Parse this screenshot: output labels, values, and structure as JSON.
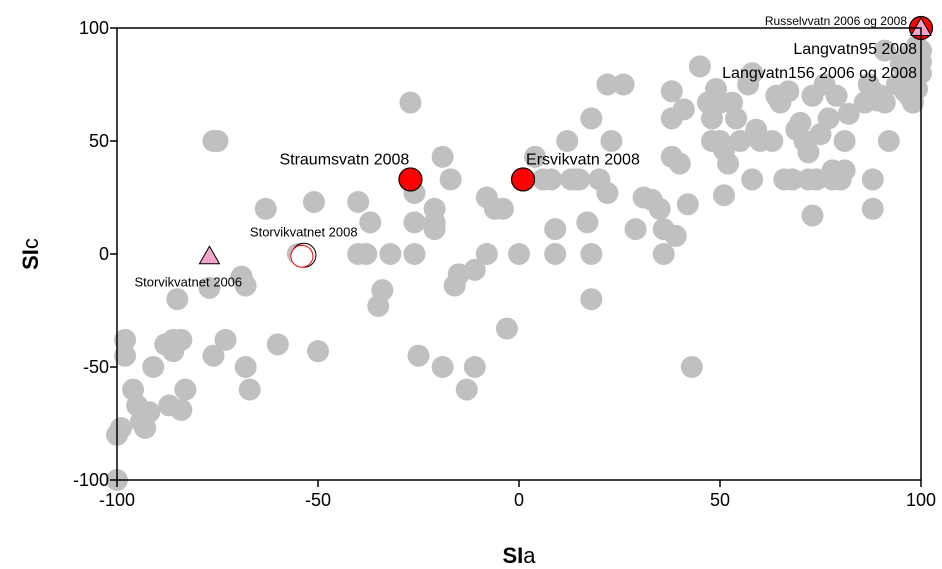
{
  "chart_data": {
    "type": "scatter",
    "xlabel": "SIa",
    "ylabel": "SIc",
    "xlim": [
      -100,
      100
    ],
    "ylim": [
      -100,
      100
    ],
    "xticks": [
      -100,
      -50,
      0,
      50,
      100
    ],
    "yticks": [
      -100,
      -50,
      0,
      50,
      100
    ],
    "grid": false,
    "colors": {
      "background_points": "#c0c0c0",
      "highlight": "#ff0000",
      "triangle": "#f4a6c8"
    },
    "background_points": [
      [
        -100,
        -100
      ],
      [
        -100,
        -80
      ],
      [
        -99,
        -77
      ],
      [
        -98,
        -45
      ],
      [
        -98,
        -38
      ],
      [
        -96,
        -60
      ],
      [
        -95,
        -67
      ],
      [
        -94,
        -74
      ],
      [
        -93,
        -77
      ],
      [
        -92,
        -70
      ],
      [
        -91,
        -50
      ],
      [
        -88,
        -40
      ],
      [
        -86,
        -38
      ],
      [
        -86,
        -43
      ],
      [
        -85,
        -20
      ],
      [
        -84,
        -38
      ],
      [
        -84,
        -69
      ],
      [
        -83,
        -60
      ],
      [
        -87,
        -67
      ],
      [
        -77,
        -15
      ],
      [
        -76,
        -45
      ],
      [
        -76,
        50
      ],
      [
        -75,
        50
      ],
      [
        -73,
        -38
      ],
      [
        -69,
        -10
      ],
      [
        -68,
        -14
      ],
      [
        -68,
        -50
      ],
      [
        -67,
        -60
      ],
      [
        -63,
        20
      ],
      [
        -60,
        -40
      ],
      [
        -55,
        0
      ],
      [
        -51,
        23
      ],
      [
        -50,
        -43
      ],
      [
        -40,
        23
      ],
      [
        -40,
        0
      ],
      [
        -38,
        0
      ],
      [
        -37,
        14
      ],
      [
        -35,
        -23
      ],
      [
        -34,
        -16
      ],
      [
        -32,
        0
      ],
      [
        -27,
        67
      ],
      [
        -26,
        27
      ],
      [
        -26,
        14
      ],
      [
        -26,
        0
      ],
      [
        -25,
        -45
      ],
      [
        -19,
        43
      ],
      [
        -19,
        -50
      ],
      [
        -17,
        33
      ],
      [
        -16,
        -14
      ],
      [
        -15,
        -9
      ],
      [
        -21,
        20
      ],
      [
        -21,
        14
      ],
      [
        -21,
        11
      ],
      [
        -13,
        -60
      ],
      [
        -11,
        -7
      ],
      [
        -11,
        -50
      ],
      [
        -8,
        25
      ],
      [
        -6,
        20
      ],
      [
        -4,
        20
      ],
      [
        -8,
        0
      ],
      [
        -3,
        -33
      ],
      [
        0,
        0
      ],
      [
        4,
        43
      ],
      [
        6,
        33
      ],
      [
        8,
        33
      ],
      [
        9,
        11
      ],
      [
        9,
        0
      ],
      [
        12,
        50
      ],
      [
        13,
        33
      ],
      [
        14,
        33
      ],
      [
        15,
        33
      ],
      [
        17,
        14
      ],
      [
        18,
        60
      ],
      [
        18,
        0
      ],
      [
        18,
        -20
      ],
      [
        20,
        33
      ],
      [
        22,
        75
      ],
      [
        22,
        27
      ],
      [
        23,
        50
      ],
      [
        26,
        75
      ],
      [
        29,
        11
      ],
      [
        31,
        25
      ],
      [
        33,
        24
      ],
      [
        35,
        20
      ],
      [
        36,
        0
      ],
      [
        36,
        11
      ],
      [
        38,
        72
      ],
      [
        38,
        60
      ],
      [
        38,
        43
      ],
      [
        39,
        8
      ],
      [
        40,
        40
      ],
      [
        41,
        64
      ],
      [
        42,
        22
      ],
      [
        43,
        -50
      ],
      [
        45,
        83
      ],
      [
        47,
        67
      ],
      [
        48,
        50
      ],
      [
        48,
        60
      ],
      [
        49,
        73
      ],
      [
        50,
        67
      ],
      [
        50,
        50
      ],
      [
        51,
        46
      ],
      [
        51,
        26
      ],
      [
        52,
        40
      ],
      [
        53,
        67
      ],
      [
        54,
        60
      ],
      [
        55,
        50
      ],
      [
        57,
        75
      ],
      [
        58,
        80
      ],
      [
        58,
        33
      ],
      [
        59,
        55
      ],
      [
        60,
        50
      ],
      [
        63,
        50
      ],
      [
        64,
        70
      ],
      [
        65,
        67
      ],
      [
        66,
        33
      ],
      [
        67,
        72
      ],
      [
        68,
        33
      ],
      [
        69,
        55
      ],
      [
        70,
        58
      ],
      [
        71,
        50
      ],
      [
        72,
        45
      ],
      [
        72,
        33
      ],
      [
        73,
        70
      ],
      [
        74,
        33
      ],
      [
        73,
        17
      ],
      [
        75,
        53
      ],
      [
        76,
        75
      ],
      [
        77,
        60
      ],
      [
        78,
        37
      ],
      [
        78,
        33
      ],
      [
        79,
        70
      ],
      [
        80,
        33
      ],
      [
        81,
        50
      ],
      [
        81,
        37
      ],
      [
        82,
        62
      ],
      [
        86,
        67
      ],
      [
        87,
        75
      ],
      [
        88,
        72
      ],
      [
        88,
        33
      ],
      [
        88,
        20
      ],
      [
        89,
        68
      ],
      [
        90,
        70
      ],
      [
        91,
        90
      ],
      [
        91,
        67
      ],
      [
        92,
        50
      ],
      [
        94,
        75
      ],
      [
        95,
        84
      ],
      [
        96,
        72
      ],
      [
        97,
        70
      ],
      [
        98,
        80
      ],
      [
        98,
        67
      ],
      [
        99,
        73
      ],
      [
        100,
        90
      ],
      [
        100,
        80
      ],
      [
        100,
        85
      ],
      [
        99,
        92
      ],
      [
        97,
        88
      ]
    ],
    "highlighted_points": [
      {
        "label": "Straumsvatn 2008",
        "x": -27,
        "y": 33,
        "marker": "filled-circle"
      },
      {
        "label": "Ersvikvatn 2008",
        "x": 1,
        "y": 33,
        "marker": "filled-circle"
      },
      {
        "label": "Storvikvatnet 2008",
        "x": -54,
        "y": -1,
        "marker": "open-circle"
      },
      {
        "label": "Storvikvatnet 2006",
        "x": -77,
        "y": -1,
        "marker": "triangle"
      },
      {
        "label": "Russelvvatn 2006 og 2008",
        "x": 100,
        "y": 100,
        "marker": "filled-circle"
      },
      {
        "label": "Langvatn95 2008",
        "x": 100,
        "y": 100,
        "marker": "triangle"
      },
      {
        "label": "Langvatn156 2006 og 2008",
        "x": 100,
        "y": 100,
        "marker": "none"
      }
    ]
  }
}
